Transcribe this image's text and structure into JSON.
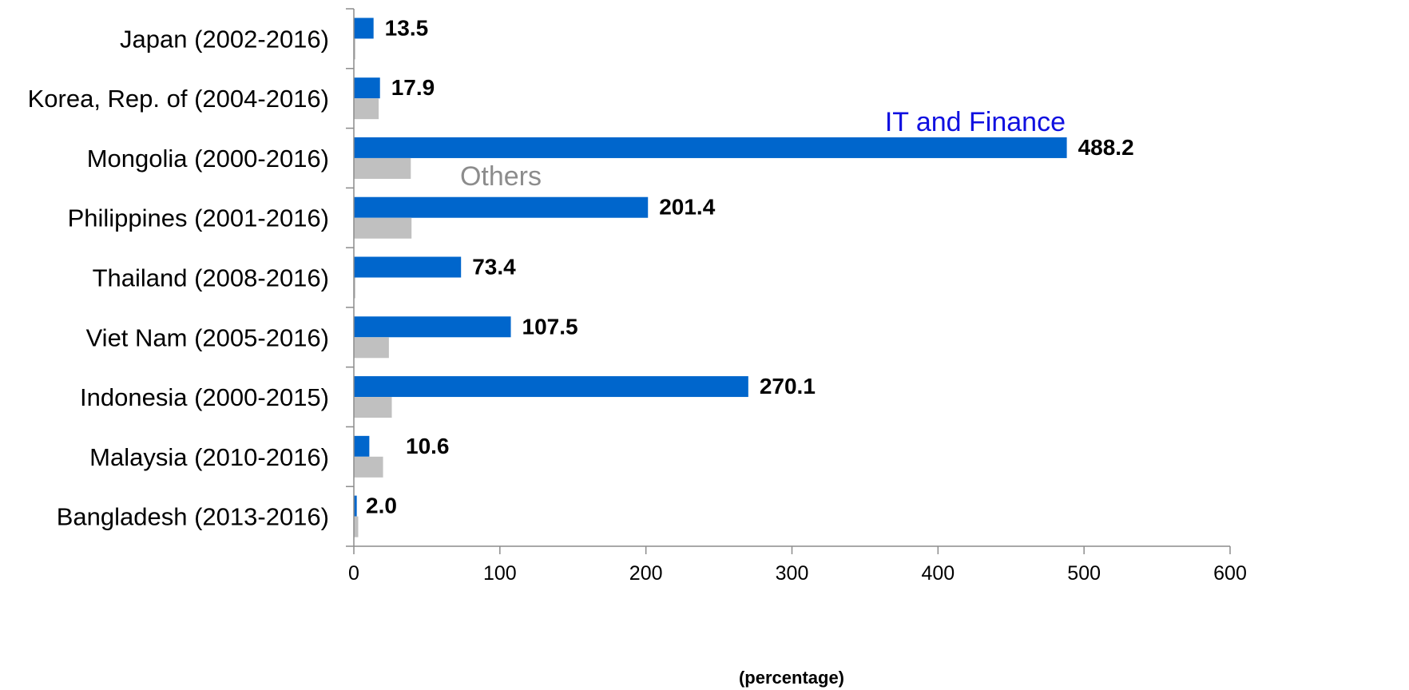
{
  "chart_data": {
    "type": "bar",
    "orientation": "horizontal",
    "categories": [
      "Japan (2002-2016)",
      "Korea, Rep. of (2004-2016)",
      "Mongolia (2000-2016)",
      "Philippines (2001-2016)",
      "Thailand (2008-2016)",
      "Viet Nam (2005-2016)",
      "Indonesia (2000-2015)",
      "Malaysia (2010-2016)",
      "Bangladesh (2013-2016)"
    ],
    "series": [
      {
        "name": "IT and Finance",
        "color": "#0066cc",
        "values": [
          13.5,
          17.9,
          488.2,
          201.4,
          73.4,
          107.5,
          270.1,
          10.6,
          2.0
        ],
        "labels": [
          "13.5",
          "17.9",
          "488.2",
          "201.4",
          "73.4",
          "107.5",
          "270.1",
          "10.6",
          "2.0"
        ]
      },
      {
        "name": "Others",
        "color": "#c0c0c0",
        "values": [
          1.0,
          17.0,
          39.0,
          39.5,
          1.0,
          24.0,
          26.0,
          20.0,
          3.0
        ]
      }
    ],
    "xlabel": "(percentage)",
    "xlim": [
      0,
      600
    ],
    "xticks": [
      "0",
      "100",
      "200",
      "300",
      "400",
      "500",
      "600"
    ],
    "grid": false,
    "annotations": [
      {
        "text": "IT and Finance",
        "series": "IT and Finance",
        "color": "#1010e0"
      },
      {
        "text": "Others",
        "series": "Others",
        "color": "#8c8c8c"
      }
    ]
  }
}
